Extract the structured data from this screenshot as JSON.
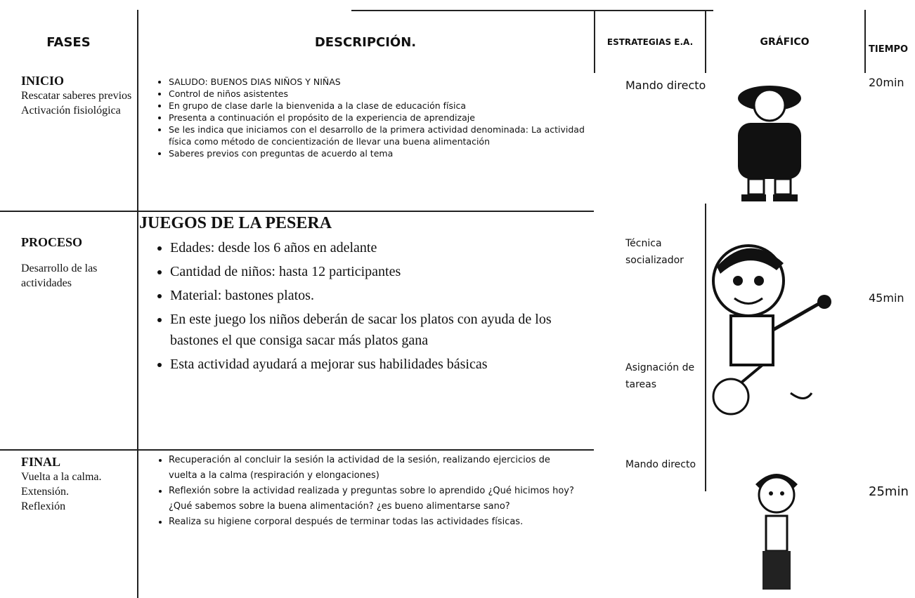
{
  "header": {
    "fases": "FASES",
    "descripcion": "DESCRIPCIÓN.",
    "estrategias": "ESTRATEGIAS E.A.",
    "grafico": "GRÁFICO",
    "tiempo": "TIEMPO"
  },
  "rows": [
    {
      "fase_title": "INICIO",
      "fase_lines": [
        "Rescatar saberes previos",
        "Activación fisiológica"
      ],
      "items": [
        "SALUDO: BUENOS DIAS NIÑOS Y NIÑAS",
        "Control de niños asistentes",
        "En grupo de clase darle la bienvenida a la clase de educación física",
        "Presenta a continuación el propósito de la experiencia de aprendizaje",
        "Se les indica que iniciamos con el desarrollo de la primera actividad denominada: La actividad física como método de concientización de llevar una buena alimentación",
        "Saberes previos con preguntas de acuerdo al tema"
      ],
      "estrategias": [
        "Mando directo"
      ],
      "tiempo": "20min"
    },
    {
      "fase_title": "PROCESO",
      "fase_lines": [
        "Desarrollo de las actividades"
      ],
      "heading": "JUEGOS DE LA PESERA",
      "items": [
        "Edades: desde los 6 años en adelante",
        "Cantidad de niños: hasta 12 participantes",
        "Material: bastones platos.",
        "En este juego los niños deberán de sacar los platos con ayuda de los bastones el que consiga sacar más platos gana",
        "Esta actividad ayudará a mejorar sus habilidades básicas"
      ],
      "estrategias": [
        "Técnica socializador",
        "Asignación de tareas"
      ],
      "tiempo": "45min"
    },
    {
      "fase_title": "FINAL",
      "fase_lines": [
        "Vuelta a la calma.",
        "Extensión.",
        "Reflexión"
      ],
      "items": [
        "Recuperación al concluir la sesión la actividad de la sesión, realizando ejercicios de vuelta a la calma (respiración y elongaciones)",
        "Reflexión sobre la actividad realizada y preguntas sobre lo aprendido ¿Qué hicimos hoy? ¿Qué sabemos sobre la buena alimentación? ¿es bueno alimentarse sano?",
        "Realiza su higiene corporal después de terminar todas las actividades físicas."
      ],
      "estrategias": [
        "Mando directo"
      ],
      "tiempo": "25min"
    }
  ]
}
